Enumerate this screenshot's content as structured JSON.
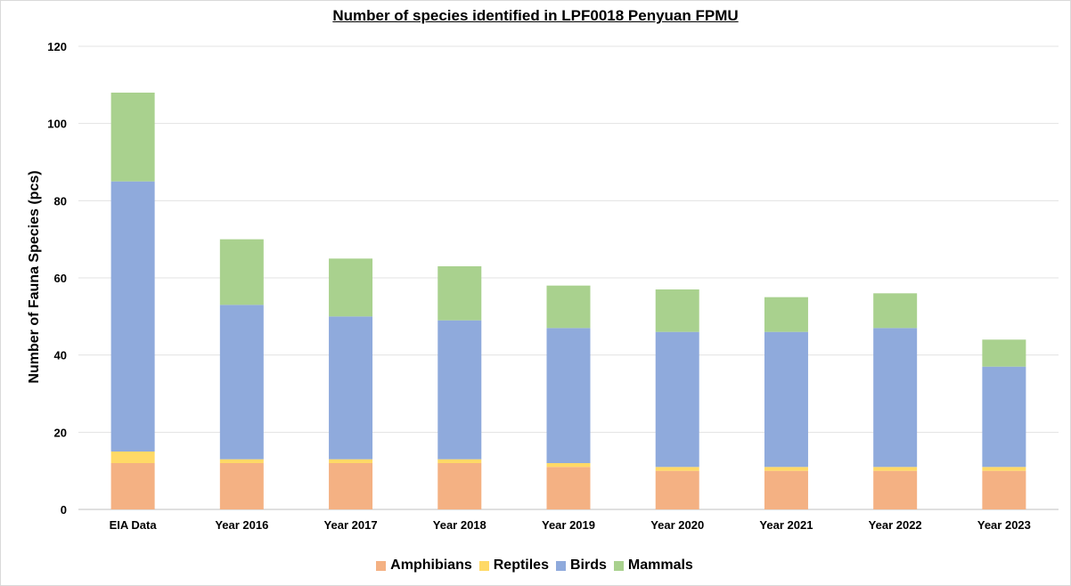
{
  "chart_data": {
    "type": "bar",
    "stacked": true,
    "title": "Number of species identified in LPF0018 Penyuan FPMU",
    "xlabel": "",
    "ylabel": "Number of Fauna Species (pcs)",
    "ylim": [
      0,
      120
    ],
    "yticks": [
      0,
      20,
      40,
      60,
      80,
      100,
      120
    ],
    "grid": true,
    "legend_position": "bottom",
    "categories": [
      "EIA Data",
      "Year 2016",
      "Year 2017",
      "Year 2018",
      "Year 2019",
      "Year 2020",
      "Year 2021",
      "Year 2022",
      "Year 2023"
    ],
    "series": [
      {
        "name": "Amphibians",
        "color": "#f4b183",
        "values": [
          12,
          12,
          12,
          12,
          11,
          10,
          10,
          10,
          10
        ]
      },
      {
        "name": "Reptiles",
        "color": "#ffd966",
        "values": [
          3,
          1,
          1,
          1,
          1,
          1,
          1,
          1,
          1
        ]
      },
      {
        "name": "Birds",
        "color": "#8faadc",
        "values": [
          70,
          40,
          37,
          36,
          35,
          35,
          35,
          36,
          26
        ]
      },
      {
        "name": "Mammals",
        "color": "#a9d18e",
        "values": [
          23,
          17,
          15,
          14,
          11,
          11,
          9,
          9,
          7
        ]
      }
    ]
  }
}
